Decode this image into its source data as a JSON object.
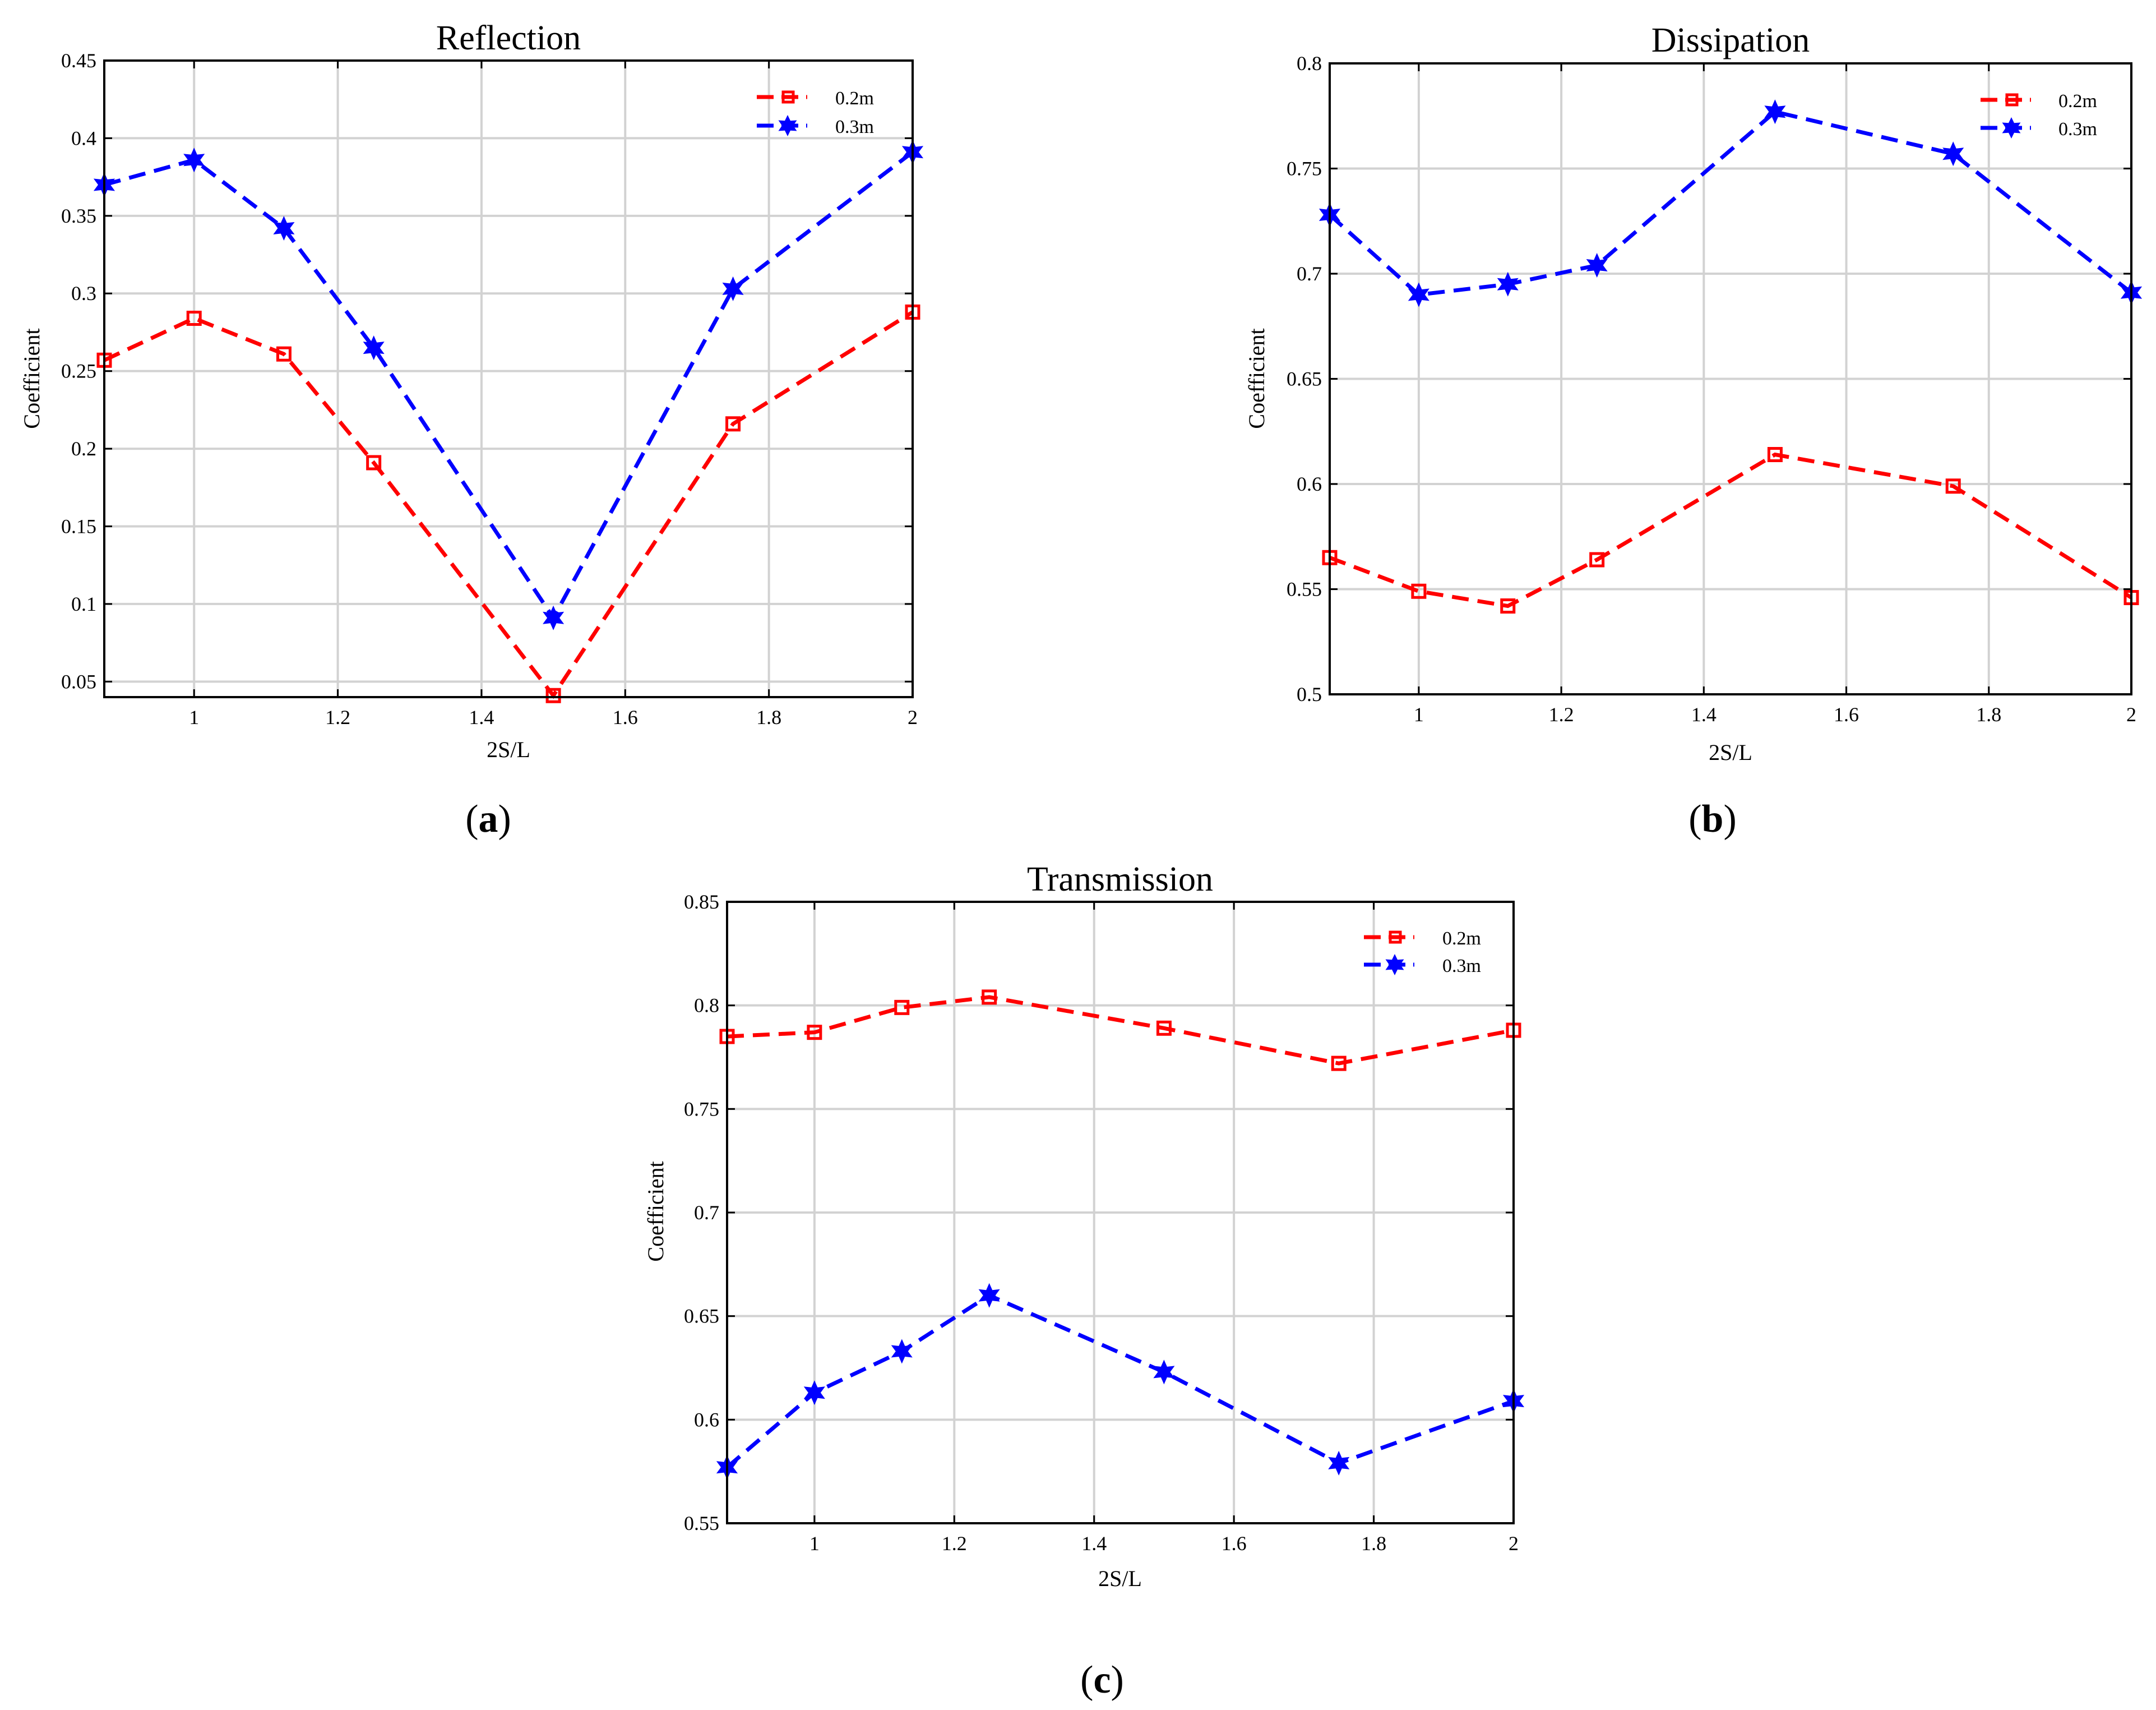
{
  "chart_data": [
    {
      "id": "a",
      "type": "line",
      "title": "Reflection",
      "xlabel": "2S/L",
      "ylabel": "Coefficient",
      "panel_label": "a",
      "xlim": [
        0.875,
        2
      ],
      "ylim": [
        0.04,
        0.45
      ],
      "xticks": [
        1,
        1.2,
        1.4,
        1.6,
        1.8,
        2
      ],
      "xtick_labels": [
        "1",
        "1.2",
        "1.4",
        "1.6",
        "1.8",
        "2"
      ],
      "yticks": [
        0.05,
        0.1,
        0.15,
        0.2,
        0.25,
        0.3,
        0.35,
        0.4,
        0.45
      ],
      "ytick_labels": [
        "0.05",
        "0.1",
        "0.15",
        "0.2",
        "0.25",
        "0.3",
        "0.35",
        "0.4",
        "0.45"
      ],
      "grid": true,
      "legend_position": "top-right",
      "x": [
        0.875,
        1,
        1.125,
        1.25,
        1.5,
        1.75,
        2
      ],
      "series": [
        {
          "name": "0.2m",
          "color": "#ff0000",
          "marker": "square",
          "values": [
            0.257,
            0.284,
            0.261,
            0.191,
            0.041,
            0.216,
            0.288
          ]
        },
        {
          "name": "0.3m",
          "color": "#0000ff",
          "marker": "star",
          "values": [
            0.37,
            0.386,
            0.342,
            0.265,
            0.091,
            0.303,
            0.391
          ]
        }
      ]
    },
    {
      "id": "b",
      "type": "line",
      "title": "Dissipation",
      "xlabel": "2S/L",
      "ylabel": "Coefficient",
      "panel_label": "b",
      "xlim": [
        0.875,
        2
      ],
      "ylim": [
        0.5,
        0.8
      ],
      "xticks": [
        1,
        1.2,
        1.4,
        1.6,
        1.8,
        2
      ],
      "xtick_labels": [
        "1",
        "1.2",
        "1.4",
        "1.6",
        "1.8",
        "2"
      ],
      "yticks": [
        0.5,
        0.55,
        0.6,
        0.65,
        0.7,
        0.75,
        0.8
      ],
      "ytick_labels": [
        "0.5",
        "0.55",
        "0.6",
        "0.65",
        "0.7",
        "0.75",
        "0.8"
      ],
      "grid": true,
      "legend_position": "top-right",
      "x": [
        0.875,
        1,
        1.125,
        1.25,
        1.5,
        1.75,
        2
      ],
      "series": [
        {
          "name": "0.2m",
          "color": "#ff0000",
          "marker": "square",
          "values": [
            0.565,
            0.549,
            0.542,
            0.564,
            0.614,
            0.599,
            0.546
          ]
        },
        {
          "name": "0.3m",
          "color": "#0000ff",
          "marker": "star",
          "values": [
            0.728,
            0.69,
            0.695,
            0.704,
            0.777,
            0.757,
            0.691
          ]
        }
      ]
    },
    {
      "id": "c",
      "type": "line",
      "title": "Transmission",
      "xlabel": "2S/L",
      "ylabel": "Coefficient",
      "panel_label": "c",
      "xlim": [
        0.875,
        2
      ],
      "ylim": [
        0.55,
        0.85
      ],
      "xticks": [
        1,
        1.2,
        1.4,
        1.6,
        1.8,
        2
      ],
      "xtick_labels": [
        "1",
        "1.2",
        "1.4",
        "1.6",
        "1.8",
        "2"
      ],
      "yticks": [
        0.55,
        0.6,
        0.65,
        0.7,
        0.75,
        0.8,
        0.85
      ],
      "ytick_labels": [
        "0.55",
        "0.6",
        "0.65",
        "0.7",
        "0.75",
        "0.8",
        "0.85"
      ],
      "grid": true,
      "legend_position": "top-right",
      "x": [
        0.875,
        1,
        1.125,
        1.25,
        1.5,
        1.75,
        2
      ],
      "series": [
        {
          "name": "0.2m",
          "color": "#ff0000",
          "marker": "square",
          "values": [
            0.785,
            0.787,
            0.799,
            0.804,
            0.789,
            0.772,
            0.788
          ]
        },
        {
          "name": "0.3m",
          "color": "#0000ff",
          "marker": "star",
          "values": [
            0.577,
            0.613,
            0.633,
            0.66,
            0.623,
            0.579,
            0.609
          ]
        }
      ]
    }
  ]
}
